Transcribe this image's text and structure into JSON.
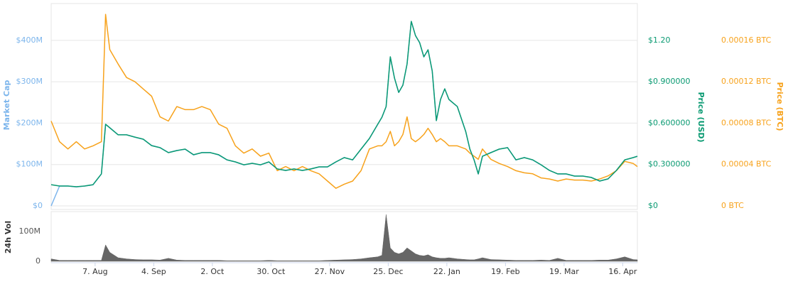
{
  "chart_data": [
    {
      "type": "line",
      "ylabel": "Market Cap",
      "y2label": "Price (USD)",
      "y3label": "Price (BTC)",
      "x": [
        0,
        4,
        8,
        12,
        16,
        20,
        24,
        26,
        28,
        32,
        36,
        40,
        44,
        48,
        52,
        56,
        60,
        64,
        68,
        72,
        76,
        80,
        84,
        88,
        92,
        96,
        100,
        104,
        108,
        112,
        116,
        120,
        124,
        128,
        132,
        136,
        140,
        144,
        148,
        152,
        156,
        158,
        160,
        162,
        164,
        166,
        168,
        170,
        172,
        174,
        176,
        178,
        180,
        182,
        184,
        186,
        188,
        190,
        194,
        198,
        200,
        202,
        204,
        206,
        210,
        214,
        218,
        222,
        226,
        230,
        234,
        238,
        242,
        246,
        250,
        254,
        258,
        262,
        266,
        270,
        274,
        278,
        280
      ],
      "xlim": [
        0,
        280
      ],
      "ylim": [
        0,
        489
      ],
      "yticks": [
        {
          "value": 0,
          "label": "$0"
        },
        {
          "value": 100,
          "label": "$100M"
        },
        {
          "value": 200,
          "label": "$200M"
        },
        {
          "value": 300,
          "label": "$300M"
        },
        {
          "value": 400,
          "label": "$400M"
        }
      ],
      "y2lim": [
        0,
        1.467
      ],
      "y2ticks": [
        {
          "value": 0,
          "label": "$0"
        },
        {
          "value": 0.3,
          "label": "$0.300000"
        },
        {
          "value": 0.6,
          "label": "$0.600000"
        },
        {
          "value": 0.9,
          "label": "$0.900000"
        },
        {
          "value": 1.2,
          "label": "$1.20"
        }
      ],
      "y3lim": [
        0,
        0.0001955
      ],
      "y3ticks": [
        {
          "value": 0,
          "label": "0 BTC"
        },
        {
          "value": 4e-05,
          "label": "0.00004 BTC"
        },
        {
          "value": 8e-05,
          "label": "0.00008 BTC"
        },
        {
          "value": 0.00012,
          "label": "0.00012 BTC"
        },
        {
          "value": 0.00016,
          "label": "0.00016 BTC"
        }
      ],
      "grid": true,
      "series": [
        {
          "color": "#7cb5ec",
          "axis": "y",
          "values": [
            0,
            48,
            48,
            46,
            48,
            51,
            77,
            197,
            189,
            172,
            172,
            166,
            161,
            146,
            141,
            129,
            134,
            137,
            123,
            129,
            129,
            123,
            111,
            106,
            99,
            103,
            99,
            106,
            89,
            86,
            89,
            86,
            89,
            94,
            94,
            106,
            117,
            111,
            137,
            163,
            197,
            214,
            240,
            360,
            309,
            274,
            292,
            343,
            446,
            412,
            394,
            360,
            377,
            326,
            206,
            257,
            283,
            257,
            240,
            180,
            137,
            111,
            77,
            120,
            129,
            137,
            141,
            111,
            117,
            111,
            99,
            86,
            77,
            77,
            72,
            72,
            69,
            60,
            65,
            86,
            111,
            117,
            120
          ]
        },
        {
          "color": "#f7a21b",
          "axis": "y3",
          "values": [
            8.2e-05,
            6.2e-05,
            5.5e-05,
            6.2e-05,
            5.5e-05,
            5.8e-05,
            6.2e-05,
            0.000185,
            0.000151,
            0.000137,
            0.000124,
            0.00012,
            0.000113,
            0.000106,
            8.6e-05,
            8.2e-05,
            9.6e-05,
            9.3e-05,
            9.3e-05,
            9.6e-05,
            9.3e-05,
            7.9e-05,
            7.5e-05,
            5.8e-05,
            5.1e-05,
            5.5e-05,
            4.8e-05,
            5.1e-05,
            3.4e-05,
            3.8e-05,
            3.4e-05,
            3.8e-05,
            3.4e-05,
            3.1e-05,
            2.4e-05,
            1.7e-05,
            2.1e-05,
            2.4e-05,
            3.4e-05,
            5.5e-05,
            5.8e-05,
            5.8e-05,
            6.2e-05,
            7.2e-05,
            5.8e-05,
            6.2e-05,
            6.9e-05,
            8.6e-05,
            6.5e-05,
            6.2e-05,
            6.5e-05,
            6.9e-05,
            7.5e-05,
            6.9e-05,
            6.2e-05,
            6.5e-05,
            6.2e-05,
            5.8e-05,
            5.8e-05,
            5.5e-05,
            5.1e-05,
            4.8e-05,
            4.5e-05,
            5.5e-05,
            4.5e-05,
            4.1e-05,
            3.8e-05,
            3.4e-05,
            3.2e-05,
            3.1e-05,
            2.7e-05,
            2.6e-05,
            2.4e-05,
            2.6e-05,
            2.5e-05,
            2.5e-05,
            2.4e-05,
            2.6e-05,
            2.9e-05,
            3.4e-05,
            4.3e-05,
            4.1e-05,
            3.8e-05
          ]
        },
        {
          "color": "#0a9a72",
          "axis": "y2",
          "values": [
            0.154,
            0.144,
            0.144,
            0.139,
            0.144,
            0.154,
            0.232,
            0.592,
            0.566,
            0.515,
            0.515,
            0.499,
            0.484,
            0.437,
            0.422,
            0.386,
            0.401,
            0.412,
            0.371,
            0.386,
            0.386,
            0.371,
            0.334,
            0.319,
            0.298,
            0.309,
            0.298,
            0.319,
            0.268,
            0.257,
            0.268,
            0.257,
            0.268,
            0.283,
            0.283,
            0.319,
            0.35,
            0.334,
            0.412,
            0.489,
            0.592,
            0.643,
            0.72,
            1.081,
            0.926,
            0.823,
            0.875,
            1.029,
            1.338,
            1.235,
            1.184,
            1.081,
            1.132,
            0.978,
            0.618,
            0.772,
            0.849,
            0.772,
            0.72,
            0.54,
            0.412,
            0.334,
            0.232,
            0.36,
            0.386,
            0.412,
            0.422,
            0.334,
            0.35,
            0.334,
            0.298,
            0.257,
            0.232,
            0.232,
            0.216,
            0.216,
            0.206,
            0.18,
            0.196,
            0.257,
            0.334,
            0.35,
            0.36
          ]
        }
      ]
    },
    {
      "type": "area",
      "ylabel": "24h Vol",
      "x": [
        0,
        4,
        8,
        12,
        16,
        20,
        24,
        26,
        28,
        32,
        36,
        40,
        44,
        48,
        52,
        56,
        60,
        64,
        68,
        72,
        76,
        80,
        84,
        88,
        92,
        96,
        100,
        104,
        108,
        112,
        116,
        120,
        124,
        128,
        132,
        136,
        140,
        144,
        148,
        152,
        156,
        158,
        160,
        162,
        164,
        166,
        168,
        170,
        172,
        174,
        176,
        178,
        180,
        182,
        184,
        186,
        188,
        190,
        194,
        198,
        200,
        202,
        204,
        206,
        210,
        214,
        218,
        222,
        226,
        230,
        234,
        238,
        242,
        246,
        250,
        254,
        258,
        262,
        266,
        270,
        274,
        278,
        280
      ],
      "xlim": [
        0,
        280
      ],
      "xticks": [
        {
          "value": 21,
          "label": "7. Aug"
        },
        {
          "value": 49,
          "label": "4. Sep"
        },
        {
          "value": 77,
          "label": "2. Oct"
        },
        {
          "value": 105,
          "label": "30. Oct"
        },
        {
          "value": 133,
          "label": "27. Nov"
        },
        {
          "value": 161,
          "label": "25. Dec"
        },
        {
          "value": 189,
          "label": "22. Jan"
        },
        {
          "value": 217,
          "label": "19. Feb"
        },
        {
          "value": 245,
          "label": "19. Mar"
        },
        {
          "value": 273,
          "label": "16. Apr"
        }
      ],
      "ylim": [
        0,
        162
      ],
      "yticks": [
        0,
        {
          "value": 100,
          "label": "100M"
        }
      ],
      "color": "#666666",
      "values": [
        8,
        3,
        3,
        3,
        3,
        3,
        3,
        55,
        30,
        12,
        8,
        6,
        5,
        5,
        4,
        10,
        4,
        3,
        3,
        3,
        3,
        3,
        2,
        2,
        2,
        2,
        2,
        3,
        2,
        2,
        2,
        2,
        2,
        2,
        3,
        4,
        5,
        6,
        8,
        12,
        15,
        20,
        157,
        45,
        30,
        25,
        30,
        45,
        35,
        25,
        20,
        18,
        22,
        15,
        12,
        10,
        10,
        12,
        8,
        6,
        5,
        5,
        8,
        12,
        6,
        5,
        4,
        3,
        3,
        3,
        4,
        3,
        10,
        3,
        3,
        3,
        3,
        4,
        4,
        8,
        15,
        6,
        5
      ]
    }
  ]
}
